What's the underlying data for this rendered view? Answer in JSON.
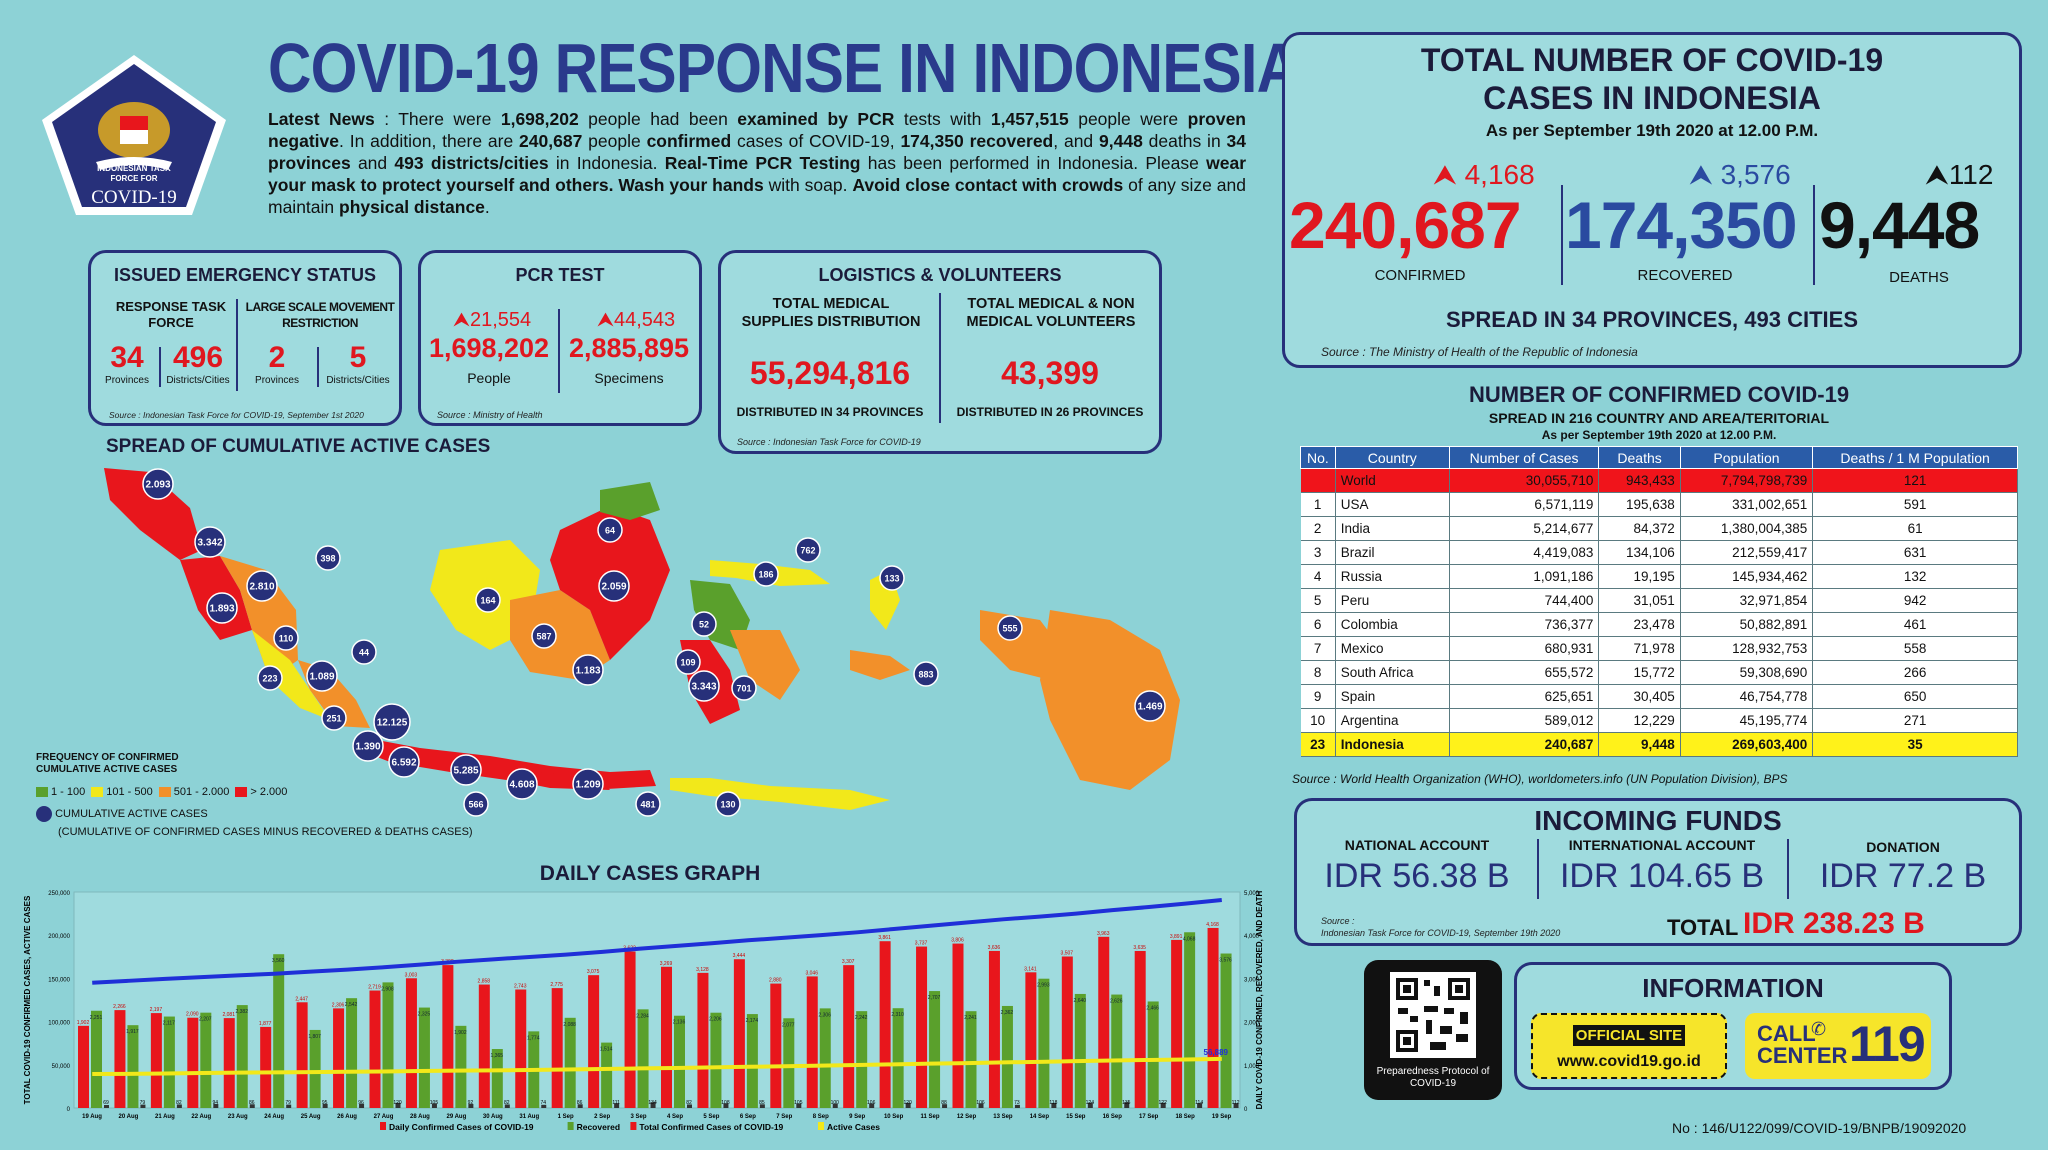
{
  "title": "COVID-19 RESPONSE IN INDONESIA",
  "logo": {
    "line1": "INDONESIAN TASK",
    "line2": "FORCE FOR",
    "line3": "COVID-19"
  },
  "news": {
    "p1": "Latest News",
    "p2": " : There were ",
    "n1": "1,698,202",
    "p3": " people had been ",
    "e1": "examined by PCR",
    "p4": " tests with ",
    "n2": "1,457,515",
    "p5": " people were ",
    "e2": "proven negative",
    "p6": ". In addition, there are ",
    "n3": "240,687",
    "p7": " people ",
    "e3": "confirmed",
    "p8": " cases of COVID-19, ",
    "n4": "174,350",
    "e4": "recovered",
    "p9": ", and ",
    "n5": "9,448",
    "p10": " deaths in ",
    "n6": "34 provinces",
    "p11": " and ",
    "n7": "493 districts/cities",
    "p12": " in Indonesia. ",
    "e5": "Real-Time PCR Testing",
    "p13": " has been performed in Indonesia. Please ",
    "e6": "wear your mask to protect yourself and others. Wash your hands",
    "p14": " with soap. ",
    "e7": "Avoid close contact with crowds",
    "p15": " of any size and maintain ",
    "e8": "physical distance",
    "p16": "."
  },
  "emergency": {
    "title": "ISSUED EMERGENCY STATUS",
    "left_head": "RESPONSE TASK FORCE",
    "right_head": "LARGE SCALE MOVEMENT RESTRICTION",
    "v1": "34",
    "l1": "Provinces",
    "v2": "496",
    "l2": "Districts/Cities",
    "v3": "2",
    "l3": "Provinces",
    "v4": "5",
    "l4": "Districts/Cities",
    "source": "Source : Indonesian Task Force for COVID-19, September 1st 2020"
  },
  "pcr": {
    "title": "PCR TEST",
    "inc1": "21,554",
    "v1": "1,698,202",
    "l1": "People",
    "inc2": "44,543",
    "v2": "2,885,895",
    "l2": "Specimens",
    "source": "Source : Ministry of Health"
  },
  "logistics": {
    "title": "LOGISTICS & VOLUNTEERS",
    "h1": "TOTAL MEDICAL SUPPLIES DISTRIBUTION",
    "v1": "55,294,816",
    "f1": "DISTRIBUTED IN 34 PROVINCES",
    "h2": "TOTAL MEDICAL & NON MEDICAL VOLUNTEERS",
    "v2": "43,399",
    "f2": "DISTRIBUTED IN 26 PROVINCES",
    "source": "Source : Indonesian Task Force for COVID-19"
  },
  "total": {
    "title1": "TOTAL NUMBER OF COVID-19",
    "title2": "CASES IN INDONESIA",
    "asof": "As per September 19th 2020 at 12.00 P.M.",
    "c_inc": "4,168",
    "c_val": "240,687",
    "c_lbl": "CONFIRMED",
    "r_inc": "3,576",
    "r_val": "174,350",
    "r_lbl": "RECOVERED",
    "d_inc": "112",
    "d_val": "9,448",
    "d_lbl": "DEATHS",
    "spread": "SPREAD IN 34 PROVINCES, 493 CITIES",
    "source": "Source : The Ministry of Health of the Republic of Indonesia"
  },
  "world": {
    "title": "NUMBER OF CONFIRMED COVID-19",
    "sub": "SPREAD IN 216 COUNTRY AND AREA/TERITORIAL",
    "asof": "As per September 19th 2020 at 12.00 P.M.",
    "headers": [
      "No.",
      "Country",
      "Number of Cases",
      "Deaths",
      "Population",
      "Deaths / 1 M Population"
    ],
    "rows": [
      [
        "",
        "World",
        "30,055,710",
        "943,433",
        "7,794,798,739",
        "121"
      ],
      [
        "1",
        "USA",
        "6,571,119",
        "195,638",
        "331,002,651",
        "591"
      ],
      [
        "2",
        "India",
        "5,214,677",
        "84,372",
        "1,380,004,385",
        "61"
      ],
      [
        "3",
        "Brazil",
        "4,419,083",
        "134,106",
        "212,559,417",
        "631"
      ],
      [
        "4",
        "Russia",
        "1,091,186",
        "19,195",
        "145,934,462",
        "132"
      ],
      [
        "5",
        "Peru",
        "744,400",
        "31,051",
        "32,971,854",
        "942"
      ],
      [
        "6",
        "Colombia",
        "736,377",
        "23,478",
        "50,882,891",
        "461"
      ],
      [
        "7",
        "Mexico",
        "680,931",
        "71,978",
        "128,932,753",
        "558"
      ],
      [
        "8",
        "South Africa",
        "655,572",
        "15,772",
        "59,308,690",
        "266"
      ],
      [
        "9",
        "Spain",
        "625,651",
        "30,405",
        "46,754,778",
        "650"
      ],
      [
        "10",
        "Argentina",
        "589,012",
        "12,229",
        "45,195,774",
        "271"
      ],
      [
        "23",
        "Indonesia",
        "240,687",
        "9,448",
        "269,603,400",
        "35"
      ]
    ],
    "source": "Source : World Health Organization (WHO), worldometers.info (UN Population Division), BPS"
  },
  "funds": {
    "title": "INCOMING FUNDS",
    "h1": "NATIONAL ACCOUNT",
    "v1": "IDR 56.38 B",
    "h2": "INTERNATIONAL ACCOUNT",
    "v2": "IDR 104.65 B",
    "h3": "DONATION",
    "v3": "IDR 77.2 B",
    "src1": "Source :",
    "src2": "Indonesian Task Force for COVID-19, September 19th 2020",
    "total_lbl": "TOTAL",
    "total_val": "IDR 238.23 B"
  },
  "qr": {
    "caption": "Preparedness Protocol of COVID-19"
  },
  "info": {
    "title": "INFORMATION",
    "site_lbl": "OFFICIAL SITE",
    "site": "www.covid19.go.id",
    "call1": "CALL",
    "call2": "CENTER",
    "call_num": "119"
  },
  "docno": "No : 146/U122/099/COVID-19/BNPB/19092020",
  "map": {
    "title": "SPREAD OF CUMULATIVE ACTIVE CASES",
    "legend_title1": "FREQUENCY OF CONFIRMED",
    "legend_title2": "CUMULATIVE ACTIVE CASES",
    "legend": [
      {
        "label": "1 - 100",
        "color": "#5aa02c"
      },
      {
        "label": "101 - 500",
        "color": "#f2e81a"
      },
      {
        "label": "501 - 2.000",
        "color": "#f2902a"
      },
      {
        "label": "> 2.000",
        "color": "#e8161c"
      }
    ],
    "dot_lbl": "CUMULATIVE ACTIVE CASES",
    "dot_note": "(CUMULATIVE OF CONFIRMED CASES MINUS RECOVERED & DEATHS CASES)",
    "bubbles": [
      "2.093",
      "3.342",
      "398",
      "2.810",
      "1.893",
      "110",
      "223",
      "1.089",
      "44",
      "251",
      "12.125",
      "1.390",
      "6.592",
      "5.285",
      "566",
      "4.608",
      "1.209",
      "164",
      "587",
      "1.183",
      "2.059",
      "64",
      "52",
      "109",
      "3.343",
      "701",
      "186",
      "762",
      "133",
      "555",
      "883",
      "1.469",
      "481",
      "130"
    ]
  },
  "chart_data": {
    "type": "bar",
    "title": "DAILY CASES GRAPH",
    "ylabel": "TOTAL COVID-19 CONFIRMED CASES, ACTIVE CASES",
    "y2label": "DAILY COVID-19 CONFIRMED, RECOVERED, AND DEATH",
    "ylim": [
      0,
      250000
    ],
    "y2lim": [
      0,
      5000
    ],
    "y_ticks": [
      "250,000",
      "200,000",
      "150,000",
      "100,000",
      "50,000",
      "0"
    ],
    "y2_ticks": [
      "5,000",
      "4,000",
      "3,000",
      "2,000",
      "1,000",
      "0"
    ],
    "categories": [
      "19 Aug",
      "20 Aug",
      "21 Aug",
      "22 Aug",
      "23 Aug",
      "24 Aug",
      "25 Aug",
      "26 Aug",
      "27 Aug",
      "28 Aug",
      "29 Aug",
      "30 Aug",
      "31 Aug",
      "1 Sep",
      "2 Sep",
      "3 Sep",
      "4 Sep",
      "5 Sep",
      "6 Sep",
      "7 Sep",
      "8 Sep",
      "9 Sep",
      "10 Sep",
      "11 Sep",
      "12 Sep",
      "13 Sep",
      "14 Sep",
      "15 Sep",
      "16 Sep",
      "17 Sep",
      "18 Sep",
      "19 Sep"
    ],
    "series": [
      {
        "name": "Daily Confirmed Cases of COVID-19",
        "color": "#e8161c",
        "values": [
          1902,
          2266,
          2197,
          2090,
          2081,
          1877,
          2447,
          2306,
          2719,
          3003,
          3308,
          2858,
          2743,
          2775,
          3075,
          3622,
          3269,
          3128,
          3444,
          2880,
          3046,
          3307,
          3861,
          3737,
          3806,
          3636,
          3141,
          3507,
          3963,
          3635,
          3891,
          4168
        ]
      },
      {
        "name": "Recovered",
        "color": "#5aa02c",
        "values": [
          2251,
          1917,
          2117,
          2207,
          2382,
          3560,
          1807,
          2542,
          2908,
          2325,
          1902,
          1365,
          1774,
          2088,
          1514,
          2284,
          2136,
          2206,
          2174,
          2077,
          2306,
          2242,
          2310,
          2707,
          2241,
          2362,
          2993,
          2640,
          2626,
          2466,
          4068,
          3576
        ]
      },
      {
        "name": "Total Confirmed Cases of COVID-19",
        "color": "#1f2fd8",
        "values": [
          144945,
          147211,
          149408,
          151498,
          153535,
          155412,
          157859,
          160165,
          162884,
          165887,
          169195,
          172053,
          174796,
          177571,
          180646,
          184268,
          187537,
          190665,
          194109,
          196989,
          200035,
          203342,
          207203,
          210940,
          214746,
          218382,
          221523,
          225030,
          228993,
          232628,
          236519,
          240687
        ]
      },
      {
        "name": "Active Cases",
        "color": "#f2e81a",
        "values": [
          39290,
          39560,
          39900,
          40500,
          41000,
          41200,
          41500,
          42000,
          42300,
          42800,
          43200,
          43500,
          44000,
          44600,
          45200,
          45800,
          46300,
          47000,
          47700,
          48300,
          49000,
          49800,
          50500,
          51300,
          52000,
          52800,
          53400,
          54300,
          55000,
          55600,
          56100,
          56889
        ]
      }
    ],
    "death_values": [
      69,
      79,
      82,
      94,
      86,
      79,
      95,
      96,
      120,
      105,
      92,
      82,
      74,
      86,
      111,
      134,
      82,
      108,
      85,
      105,
      100,
      106,
      120,
      88,
      106,
      73,
      118,
      124,
      135,
      122,
      114,
      112
    ],
    "value_labels": {
      "confirmed": [
        "1,902",
        "2,266",
        "2,197",
        "2,090",
        "2,081",
        "1,877",
        "2,447",
        "2,306",
        "2,719",
        "3,003",
        "3,308",
        "2,858",
        "2,743",
        "2,775",
        "3,075",
        "3,622",
        "3,269",
        "3,128",
        "3,444",
        "2,880",
        "3,046",
        "3,307",
        "3,861",
        "3,737",
        "3,806",
        "3,636",
        "3,141",
        "3,507",
        "3,963",
        "3,635",
        "3,891",
        "4,168"
      ],
      "recovered": [
        "2,251",
        "1,917",
        "2,117",
        "2,207",
        "2,382",
        "3,560",
        "1,807",
        "2,542",
        "2,908",
        "2,325",
        "1,902",
        "1,365",
        "1,774",
        "2,088",
        "1,514",
        "2,284",
        "2,136",
        "2,206",
        "2,174",
        "2,077",
        "2,306",
        "2,242",
        "2,310",
        "2,707",
        "2,241",
        "2,362",
        "2,993",
        "2,640",
        "2,626",
        "2,466",
        "4,068",
        "3,576"
      ],
      "deaths": [
        "69",
        "79",
        "82",
        "94",
        "86",
        "79",
        "95",
        "96",
        "120",
        "105",
        "92",
        "82",
        "74",
        "86",
        "111",
        "134",
        "82",
        "108",
        "85",
        "105",
        "100",
        "106",
        "120",
        "88",
        "106",
        "73",
        "118",
        "124",
        "135",
        "122",
        "114",
        "112"
      ]
    },
    "last_active_label": "56,889",
    "legend": [
      "Daily Confirmed Cases of COVID-19",
      "Recovered",
      "Total Confirmed Cases of COVID-19",
      "Active Cases"
    ]
  }
}
